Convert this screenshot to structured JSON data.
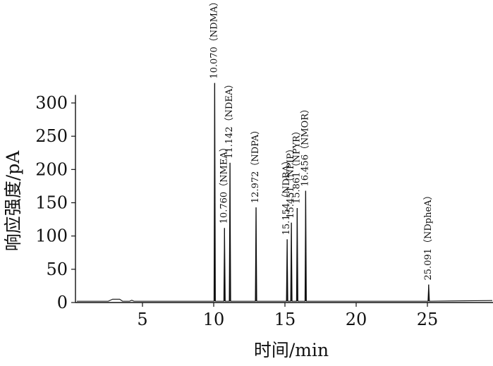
{
  "chart_data": {
    "type": "line",
    "title": "",
    "xlabel": "时间/min",
    "ylabel": "响应强度/pA",
    "xlim": [
      0,
      29
    ],
    "ylim": [
      0,
      310
    ],
    "xticks": [
      5,
      10,
      15,
      20,
      25
    ],
    "yticks": [
      0,
      50,
      100,
      150,
      200,
      250,
      300
    ],
    "grid": false,
    "legend": "none",
    "baseline": 2,
    "line_color": "#111111",
    "peaks": [
      {
        "label": "10.070（NDMA）",
        "x": 10.07,
        "y": 330
      },
      {
        "label": "10.760（NMEA）",
        "x": 10.76,
        "y": 112
      },
      {
        "label": "11.142（NDEA）",
        "x": 11.142,
        "y": 210
      },
      {
        "label": "12.972（NDPA）",
        "x": 12.972,
        "y": 143
      },
      {
        "label": "15.154（NDBA）",
        "x": 15.154,
        "y": 95
      },
      {
        "label": "15.451（NPIP）",
        "x": 15.451,
        "y": 120
      },
      {
        "label": "15.861（NPYR）",
        "x": 15.861,
        "y": 142
      },
      {
        "label": "16.456（NMOR）",
        "x": 16.456,
        "y": 168
      },
      {
        "label": "25.091（NDpheA）",
        "x": 25.091,
        "y": 27
      }
    ]
  }
}
